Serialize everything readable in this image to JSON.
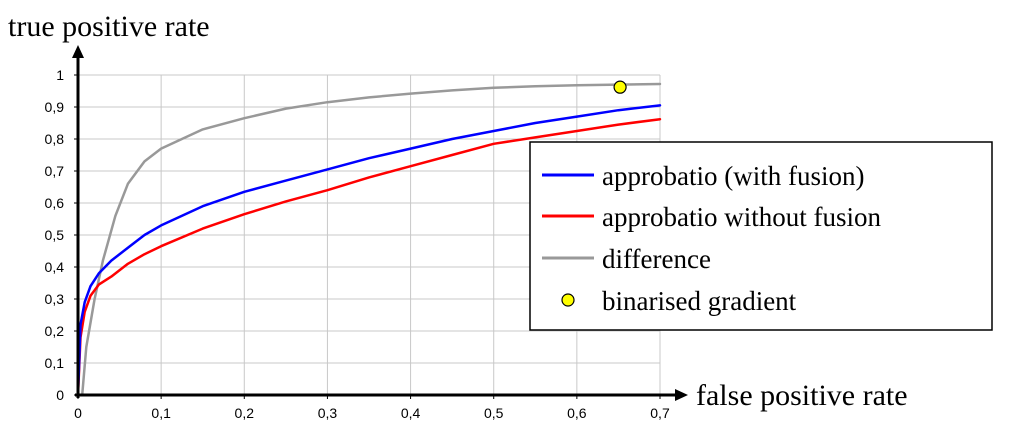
{
  "chart_data": {
    "type": "line",
    "xlabel": "false positive rate",
    "ylabel": "true positive rate",
    "xlim": [
      0,
      0.7
    ],
    "ylim": [
      0,
      1
    ],
    "x_ticks": [
      "0",
      "0,1",
      "0,2",
      "0,3",
      "0,4",
      "0,5",
      "0,6",
      "0,7"
    ],
    "y_ticks": [
      "0",
      "0,1",
      "0,2",
      "0,3",
      "0,4",
      "0,5",
      "0,6",
      "0,7",
      "0,8",
      "0,9",
      "1"
    ],
    "grid": true,
    "legend_position": "right",
    "series": [
      {
        "name": "approbatio (with fusion)",
        "color": "#0000ff",
        "x": [
          0.0,
          0.003,
          0.008,
          0.015,
          0.025,
          0.04,
          0.06,
          0.08,
          0.1,
          0.15,
          0.2,
          0.25,
          0.3,
          0.35,
          0.4,
          0.45,
          0.5,
          0.55,
          0.6,
          0.65,
          0.7
        ],
        "y": [
          0.0,
          0.22,
          0.29,
          0.34,
          0.38,
          0.42,
          0.46,
          0.5,
          0.53,
          0.59,
          0.635,
          0.67,
          0.705,
          0.74,
          0.77,
          0.8,
          0.825,
          0.85,
          0.87,
          0.89,
          0.905
        ]
      },
      {
        "name": "approbatio without fusion",
        "color": "#ff0000",
        "x": [
          0.0,
          0.003,
          0.008,
          0.015,
          0.025,
          0.04,
          0.06,
          0.08,
          0.1,
          0.15,
          0.2,
          0.25,
          0.3,
          0.35,
          0.4,
          0.45,
          0.5,
          0.55,
          0.6,
          0.65,
          0.7
        ],
        "y": [
          0.0,
          0.18,
          0.26,
          0.31,
          0.345,
          0.37,
          0.41,
          0.44,
          0.465,
          0.52,
          0.565,
          0.605,
          0.64,
          0.68,
          0.715,
          0.75,
          0.785,
          0.805,
          0.825,
          0.845,
          0.862
        ]
      },
      {
        "name": "difference",
        "color": "#999999",
        "x": [
          0.005,
          0.01,
          0.02,
          0.03,
          0.045,
          0.06,
          0.08,
          0.1,
          0.15,
          0.2,
          0.25,
          0.3,
          0.35,
          0.4,
          0.45,
          0.5,
          0.55,
          0.6,
          0.65,
          0.7
        ],
        "y": [
          0.0,
          0.15,
          0.3,
          0.42,
          0.56,
          0.66,
          0.73,
          0.77,
          0.83,
          0.865,
          0.895,
          0.915,
          0.93,
          0.942,
          0.952,
          0.96,
          0.965,
          0.968,
          0.97,
          0.972
        ]
      }
    ],
    "points": [
      {
        "name": "binarised gradient",
        "color": "#ffff00",
        "x": 0.652,
        "y": 0.962
      }
    ]
  }
}
